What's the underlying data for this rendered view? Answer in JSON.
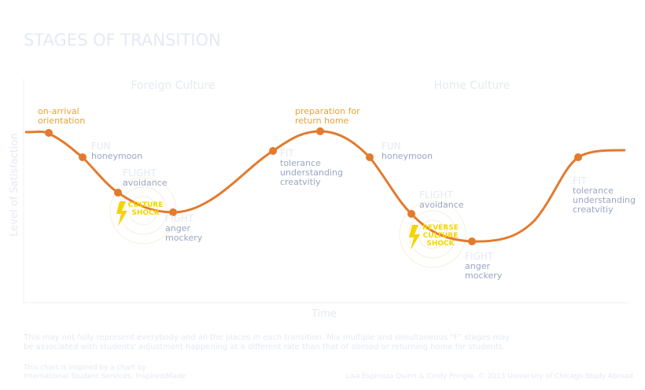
{
  "header": {
    "title": "STAGES OF TRANSITION"
  },
  "regions": [
    "Foreign Culture",
    "Home Culture"
  ],
  "axes": {
    "y": "Level of Satisfaction",
    "x": "Time"
  },
  "stages": [
    {
      "lines": [
        "on-arrival",
        "orientation"
      ]
    },
    {
      "name": "FUN",
      "lines": [
        "honeymoon"
      ]
    },
    {
      "name": "FLIGHT",
      "lines": [
        "avoidance"
      ]
    },
    {
      "name": "FIGHT",
      "lines": [
        "anger",
        "mockery"
      ]
    },
    {
      "name": "FIT",
      "lines": [
        "tolerance",
        "understanding",
        "creatvitiy"
      ]
    },
    {
      "lines": [
        "preparation for",
        "return home"
      ]
    },
    {
      "name": "FUN",
      "lines": [
        "honeymoon"
      ]
    },
    {
      "name": "FLIGHT",
      "lines": [
        "avoidance"
      ]
    },
    {
      "name": "FIGHT",
      "lines": [
        "anger",
        "mockery"
      ]
    },
    {
      "name": "FIT",
      "lines": [
        "tolerance",
        "understanding",
        "creatvitiy"
      ]
    }
  ],
  "shocks": [
    [
      "CULTURE",
      "SHOCK"
    ],
    [
      "REVERSE",
      "CULTURE",
      "SHOCK"
    ]
  ],
  "footer": {
    "note": [
      "This may not fully represent everybody and all the places in each transition. Mix multiple and simultaneous \"F\" stages may",
      "be associated with students' adjustment happening at a different rate than that of abroad or returning home for students."
    ],
    "credit": [
      "This chart is inspired by a chart by",
      "International Student Services, Inspired/Made"
    ],
    "copyright": "Lisa Espinoza Quinn & Cindy Pringle, © 2013 University of Chicago Study Abroad"
  }
}
